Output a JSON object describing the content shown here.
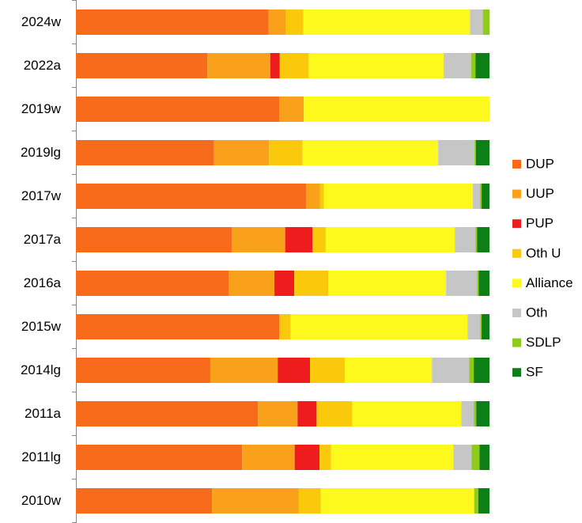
{
  "chart_data": {
    "type": "bar",
    "orientation": "horizontal",
    "stacked": true,
    "normalized": true,
    "title": "",
    "xlabel": "",
    "ylabel": "",
    "grid": false,
    "legend_position": "right",
    "categories": [
      "2024w",
      "2022a",
      "2019w",
      "2019lg",
      "2017w",
      "2017a",
      "2016a",
      "2015w",
      "2014lg",
      "2011a",
      "2011lg",
      "2010w"
    ],
    "series": [
      {
        "name": "DUP",
        "color": "#F86B1A",
        "values": [
          46.6,
          31.8,
          49.2,
          33.4,
          55.8,
          37.7,
          36.9,
          49.2,
          32.5,
          44.0,
          40.2,
          32.9
        ]
      },
      {
        "name": "UUP",
        "color": "#F9A11B",
        "values": [
          4.2,
          15.2,
          5.9,
          13.3,
          3.3,
          12.9,
          11.1,
          0.0,
          16.3,
          9.6,
          12.7,
          21.0
        ]
      },
      {
        "name": "PUP",
        "color": "#EE1C1C",
        "values": [
          0.0,
          2.3,
          0.0,
          0.0,
          0.0,
          6.6,
          4.8,
          0.0,
          7.8,
          4.6,
          6.0,
          0.0
        ]
      },
      {
        "name": "Oth U",
        "color": "#FBC90C",
        "values": [
          4.2,
          7.0,
          0.0,
          8.1,
          1.0,
          3.2,
          8.2,
          2.7,
          8.4,
          8.6,
          2.8,
          5.3
        ]
      },
      {
        "name": "Alliance",
        "color": "#FDF91D",
        "values": [
          40.3,
          32.6,
          44.9,
          32.8,
          36.1,
          31.2,
          28.5,
          42.8,
          21.1,
          26.4,
          29.6,
          37.1
        ]
      },
      {
        "name": "Oth",
        "color": "#C6C6C6",
        "values": [
          3.1,
          6.7,
          0.0,
          8.8,
          1.7,
          5.0,
          7.5,
          3.1,
          9.0,
          3.0,
          4.4,
          0.0
        ]
      },
      {
        "name": "SDLP",
        "color": "#8FCB1C",
        "values": [
          1.6,
          1.0,
          0.0,
          0.3,
          0.4,
          0.4,
          0.4,
          0.3,
          1.1,
          0.6,
          1.9,
          1.0
        ]
      },
      {
        "name": "SF",
        "color": "#0E7F16",
        "values": [
          0.0,
          3.4,
          0.0,
          3.3,
          1.9,
          3.0,
          2.6,
          1.9,
          3.8,
          3.2,
          2.4,
          2.7
        ]
      }
    ]
  }
}
